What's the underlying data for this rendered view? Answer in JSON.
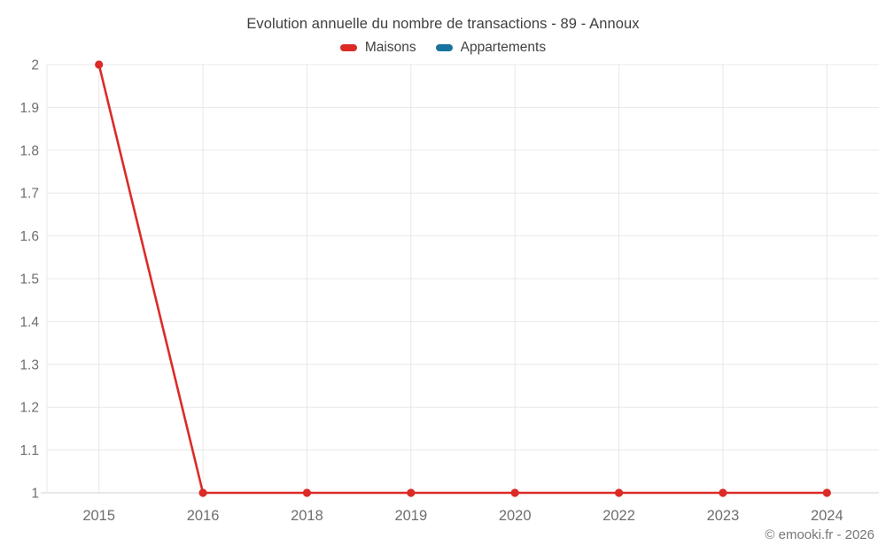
{
  "chart_data": {
    "type": "line",
    "title": "Evolution annuelle du nombre de transactions - 89 - Annoux",
    "footer": "© emooki.fr - 2026",
    "categories": [
      "2015",
      "2016",
      "2018",
      "2019",
      "2020",
      "2022",
      "2023",
      "2024"
    ],
    "series": [
      {
        "name": "Maisons",
        "color": "#db2b27",
        "values": [
          2,
          1,
          1,
          1,
          1,
          1,
          1,
          1
        ]
      },
      {
        "name": "Appartements",
        "color": "#17749e",
        "values": []
      }
    ],
    "ylim": [
      1,
      2
    ],
    "yticks": [
      2,
      1.9,
      1.8,
      1.7,
      1.6,
      1.5,
      1.4,
      1.3,
      1.2,
      1.1,
      1
    ],
    "ytick_labels": [
      "2",
      "1.9",
      "1.8",
      "1.7",
      "1.6",
      "1.5",
      "1.4",
      "1.3",
      "1.2",
      "1.1",
      "1"
    ],
    "xlabel": "",
    "ylabel": "",
    "grid": true,
    "legend_position": "top",
    "colors": {
      "grid_line": "#e8e8e8",
      "axis_line": "#d2d2d2",
      "tick_text": "#6e6e6e",
      "title_text": "#3f3f3f",
      "legend_text": "#424242",
      "footer_text": "#777777"
    }
  }
}
